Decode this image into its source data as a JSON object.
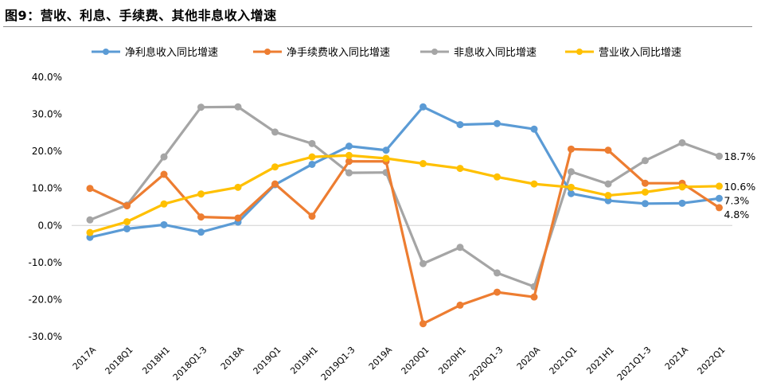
{
  "figure": {
    "title": "图9：营收、利息、手续费、其他非息收入增速"
  },
  "chart_data": {
    "type": "line",
    "title": "图9：营收、利息、手续费、其他非息收入增速",
    "xlabel": "",
    "ylabel": "",
    "categories": [
      "2017A",
      "2018Q1",
      "2018H1",
      "2018Q1-3",
      "2018A",
      "2019Q1",
      "2019H1",
      "2019Q1-3",
      "2019A",
      "2020Q1",
      "2020H1",
      "2020Q1-3",
      "2020A",
      "2021Q1",
      "2021H1",
      "2021Q1-3",
      "2021A",
      "2022Q1"
    ],
    "y_ticks": [
      "40.0%",
      "30.0%",
      "20.0%",
      "10.0%",
      "0.0%",
      "-10.0%",
      "-20.0%",
      "-30.0%"
    ],
    "ylim": [
      -30,
      40
    ],
    "grid": false,
    "legend_position": "top",
    "series": [
      {
        "name": "净利息收入同比增速",
        "color": "#5B9BD5",
        "values": [
          -3.2,
          -0.9,
          0.2,
          -1.8,
          0.9,
          11.0,
          16.5,
          21.4,
          20.3,
          32.0,
          27.2,
          27.5,
          26.0,
          8.6,
          6.7,
          5.9,
          6.0,
          7.3
        ],
        "end_label": "7.3%"
      },
      {
        "name": "净手续费收入同比增速",
        "color": "#ED7D31",
        "values": [
          10.0,
          5.3,
          13.8,
          2.3,
          2.0,
          11.2,
          2.5,
          17.3,
          17.3,
          -26.5,
          -21.5,
          -18.0,
          -19.3,
          20.6,
          20.3,
          11.4,
          11.4,
          4.8
        ],
        "end_label": "4.8%"
      },
      {
        "name": "非息收入同比增速",
        "color": "#A5A5A5",
        "values": [
          1.5,
          5.5,
          18.5,
          31.9,
          32.0,
          25.2,
          22.1,
          14.2,
          14.3,
          -10.3,
          -5.9,
          -12.8,
          -16.5,
          14.5,
          11.2,
          17.5,
          22.3,
          18.7
        ],
        "end_label": "18.7%"
      },
      {
        "name": "营业收入同比增速",
        "color": "#FFC000",
        "values": [
          -1.9,
          1.0,
          5.8,
          8.5,
          10.3,
          15.8,
          18.5,
          18.9,
          18.1,
          16.7,
          15.4,
          13.1,
          11.2,
          10.3,
          8.1,
          9.0,
          10.4,
          10.6
        ],
        "end_label": "10.6%"
      }
    ]
  }
}
